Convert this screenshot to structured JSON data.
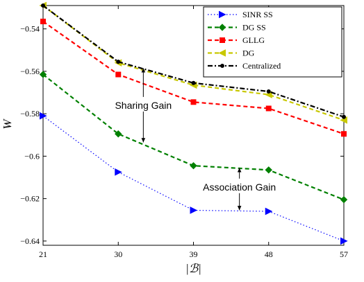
{
  "chart_data": {
    "type": "line",
    "x": [
      21,
      30,
      39,
      48,
      57
    ],
    "xlabel": "|ℬ|",
    "ylabel": "W",
    "xlim": [
      21,
      57
    ],
    "ylim": [
      -0.642,
      -0.529
    ],
    "xticks": [
      21,
      30,
      39,
      48,
      57
    ],
    "yticks": [
      -0.54,
      -0.56,
      -0.58,
      -0.6,
      -0.62,
      -0.64
    ],
    "ytick_labels": [
      "−0.54",
      "−0.56",
      "−0.58",
      "−0.6",
      "−0.62",
      "−0.64"
    ],
    "grid": false,
    "legend_position": "top-right",
    "series": [
      {
        "name": "SINR SS",
        "color": "#0000ff",
        "line": "dotted",
        "marker": "triangle-right",
        "values": [
          -0.581,
          -0.6075,
          -0.6255,
          -0.626,
          -0.64
        ]
      },
      {
        "name": "DG SS",
        "color": "#008000",
        "line": "dashed",
        "marker": "diamond",
        "values": [
          -0.5615,
          -0.5895,
          -0.6045,
          -0.6065,
          -0.6205
        ]
      },
      {
        "name": "GLLG",
        "color": "#ff0000",
        "line": "dashed",
        "marker": "square",
        "values": [
          -0.5365,
          -0.5615,
          -0.5745,
          -0.5775,
          -0.5895
        ]
      },
      {
        "name": "DG",
        "color": "#c8c800",
        "line": "dashed",
        "marker": "triangle-left",
        "values": [
          -0.529,
          -0.556,
          -0.5665,
          -0.571,
          -0.583
        ]
      },
      {
        "name": "Centralized",
        "color": "#000000",
        "line": "dashdot",
        "marker": "dot",
        "values": [
          -0.529,
          -0.5555,
          -0.5655,
          -0.5695,
          -0.5815
        ]
      }
    ],
    "annotations": [
      {
        "text": "Sharing Gain",
        "x": 33,
        "y_top": -0.5585,
        "y_bottom": -0.5935,
        "label_y": -0.576
      },
      {
        "text": "Association Gain",
        "x": 44.5,
        "y_top": -0.6055,
        "y_bottom": -0.6255,
        "label_y": -0.6145
      }
    ]
  }
}
